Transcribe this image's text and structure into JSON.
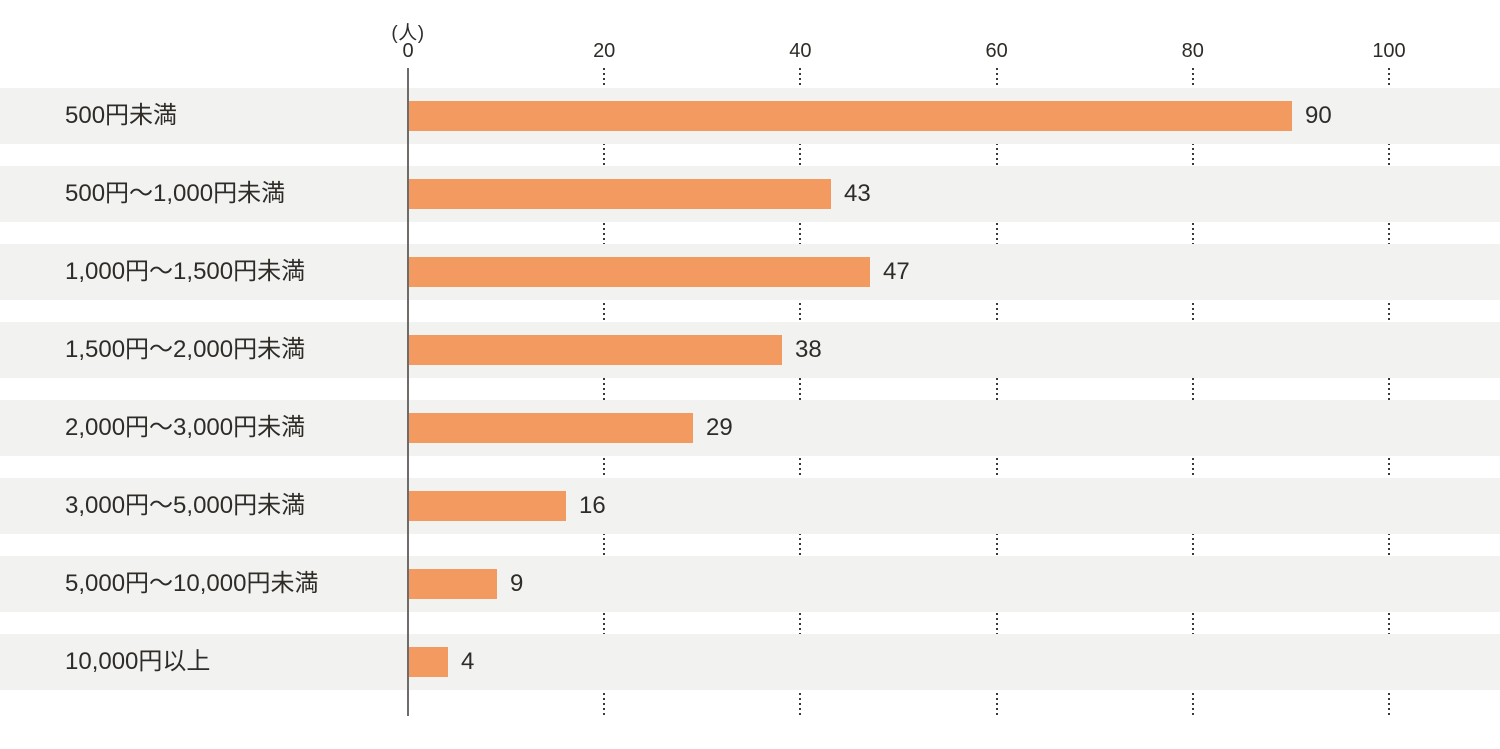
{
  "chart_data": {
    "type": "bar",
    "orientation": "horizontal",
    "title": "",
    "unit_label": "(人)",
    "categories": [
      "500円未満",
      "500円〜1,000円未満",
      "1,000円〜1,500円未満",
      "1,500円〜2,000円未満",
      "2,000円〜3,000円未満",
      "3,000円〜5,000円未満",
      "5,000円〜10,000円未満",
      "10,000円以上"
    ],
    "values": [
      90,
      43,
      47,
      38,
      29,
      16,
      9,
      4
    ],
    "value_labels": [
      "90",
      "43",
      "47",
      "38",
      "29",
      "16",
      "9",
      "4"
    ],
    "xlabel": "",
    "ylabel": "",
    "xlim": [
      0,
      100
    ],
    "ticks": [
      "0",
      "20",
      "40",
      "60",
      "80",
      "100"
    ],
    "tick_values": [
      0,
      20,
      40,
      60,
      80,
      100
    ],
    "grid": "dotted-vertical-in-gaps",
    "legend": "none",
    "colors": {
      "bar": "#f39a61",
      "row_band": "#f2f2f0",
      "text": "#2f2c28",
      "axis_line": "#6e6b68",
      "gridline_dots": "#3a3a3a",
      "background": "#ffffff"
    }
  }
}
